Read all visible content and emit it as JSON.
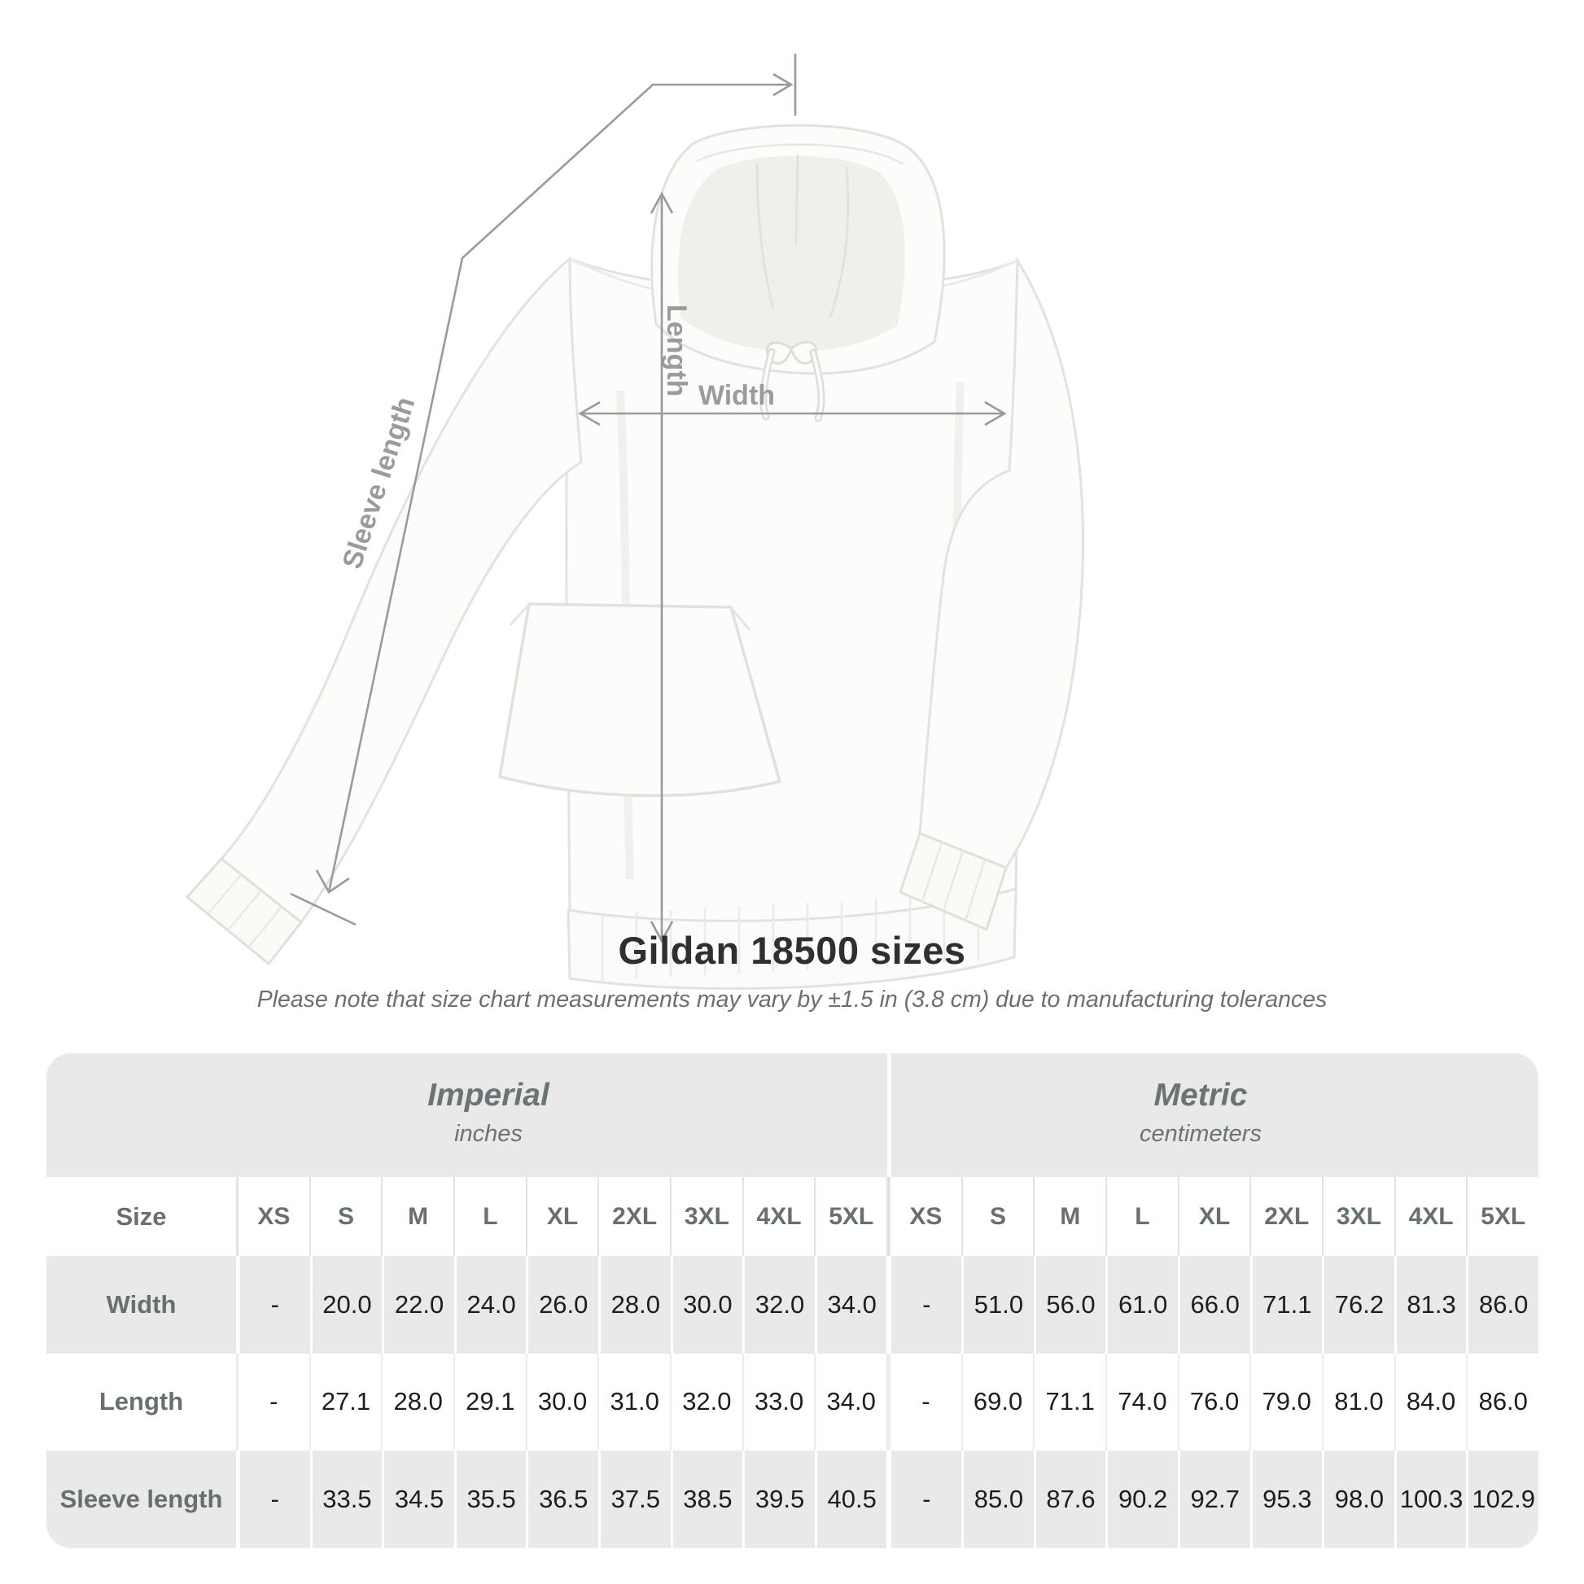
{
  "chart_data": {
    "type": "table",
    "title": "Gildan 18500 sizes",
    "subtitle": "Please note that size chart measurements may vary by ±1.5 in (3.8 cm) due to manufacturing tolerances",
    "corner_label": "Size",
    "groups": [
      {
        "label": "Imperial",
        "unit": "inches",
        "sizes": [
          "XS",
          "S",
          "M",
          "L",
          "XL",
          "2XL",
          "3XL",
          "4XL",
          "5XL"
        ]
      },
      {
        "label": "Metric",
        "unit": "centimeters",
        "sizes": [
          "XS",
          "S",
          "M",
          "L",
          "XL",
          "2XL",
          "3XL",
          "4XL",
          "5XL"
        ]
      }
    ],
    "rows": [
      {
        "label": "Width",
        "imperial": [
          "-",
          "20.0",
          "22.0",
          "24.0",
          "26.0",
          "28.0",
          "30.0",
          "32.0",
          "34.0"
        ],
        "metric": [
          "-",
          "51.0",
          "56.0",
          "61.0",
          "66.0",
          "71.1",
          "76.2",
          "81.3",
          "86.0"
        ]
      },
      {
        "label": "Length",
        "imperial": [
          "-",
          "27.1",
          "28.0",
          "29.1",
          "30.0",
          "31.0",
          "32.0",
          "33.0",
          "34.0"
        ],
        "metric": [
          "-",
          "69.0",
          "71.1",
          "74.0",
          "76.0",
          "79.0",
          "81.0",
          "84.0",
          "86.0"
        ]
      },
      {
        "label": "Sleeve length",
        "imperial": [
          "-",
          "33.5",
          "34.5",
          "35.5",
          "36.5",
          "37.5",
          "38.5",
          "39.5",
          "40.5"
        ],
        "metric": [
          "-",
          "85.0",
          "87.6",
          "90.2",
          "92.7",
          "95.3",
          "98.0",
          "100.3",
          "102.9"
        ]
      }
    ]
  },
  "diagram": {
    "length_label": "Length",
    "width_label": "Width",
    "sleeve_label": "Sleeve length"
  },
  "colors": {
    "table_band": "#e9e9e9",
    "table_header_text": "#66706f",
    "table_value_text": "#1d1d1d",
    "measure_line": "#9a9a9a",
    "measure_label": "#9b9b9b",
    "title_text": "#2f2f2f",
    "subtitle_text": "#6e6e6e"
  }
}
